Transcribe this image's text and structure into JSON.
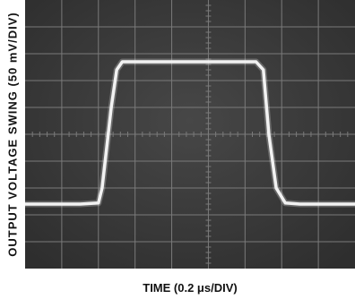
{
  "chart_data": {
    "type": "line",
    "xlabel": "TIME (0.2 μs/DIV)",
    "ylabel": "OUTPUT VOLTAGE SWING (50 mV/DIV)",
    "xlim": [
      0,
      1.8
    ],
    "ylim": [
      0,
      0.5
    ],
    "x_divisions": 9,
    "y_divisions": 10,
    "grid": true,
    "series": [
      {
        "x": [
          0,
          0.3,
          0.4,
          0.42,
          0.47,
          0.5,
          0.53,
          0.6,
          1.26,
          1.3,
          1.33,
          1.37,
          1.42,
          1.5,
          1.8
        ],
        "y": [
          0.12,
          0.12,
          0.122,
          0.15,
          0.3,
          0.37,
          0.385,
          0.385,
          0.385,
          0.37,
          0.25,
          0.15,
          0.122,
          0.12,
          0.12
        ]
      }
    ],
    "colors": {
      "screen": "#3d3d3d",
      "grid": "#7a7a7a",
      "trace": "#f2f2f2"
    }
  }
}
